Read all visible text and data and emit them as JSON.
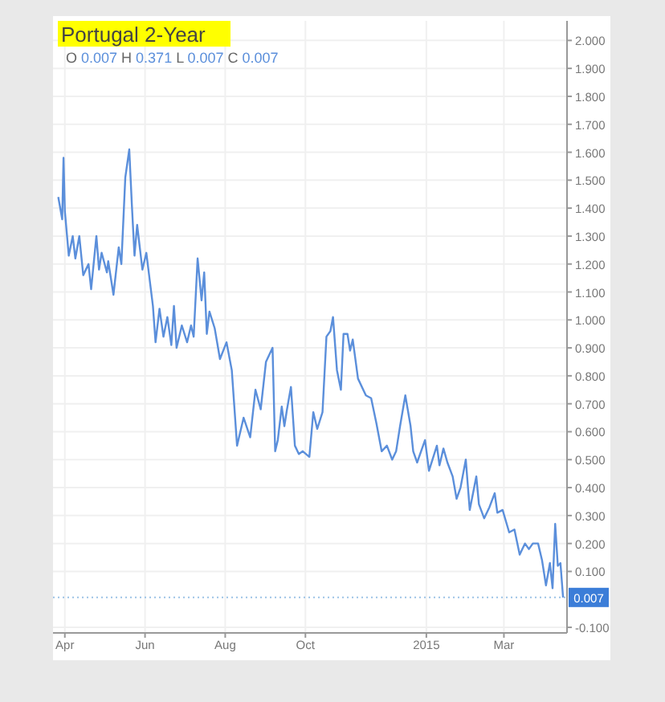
{
  "chart_data": {
    "type": "line",
    "title": "Portugal 2-Year",
    "subtitle": "O 0.007 H 0.371 L 0.007 C 0.007",
    "series": [
      {
        "color": "#5b8fdb",
        "x": [
          "2014-03-27",
          "2014-03-30",
          "2014-03-31",
          "2014-04-01",
          "2014-04-04",
          "2014-04-07",
          "2014-04-09",
          "2014-04-12",
          "2014-04-15",
          "2014-04-19",
          "2014-04-21",
          "2014-04-25",
          "2014-04-27",
          "2014-04-29",
          "2014-05-03",
          "2014-05-04",
          "2014-05-08",
          "2014-05-12",
          "2014-05-14",
          "2014-05-17",
          "2014-05-20",
          "2014-05-22",
          "2014-05-24",
          "2014-05-26",
          "2014-05-30",
          "2014-06-02",
          "2014-06-07",
          "2014-06-09",
          "2014-06-12",
          "2014-06-15",
          "2014-06-18",
          "2014-06-21",
          "2014-06-23",
          "2014-06-25",
          "2014-06-29",
          "2014-07-03",
          "2014-07-06",
          "2014-07-08",
          "2014-07-11",
          "2014-07-14",
          "2014-07-16",
          "2014-07-18",
          "2014-07-20",
          "2014-07-24",
          "2014-07-28",
          "2014-08-02",
          "2014-08-06",
          "2014-08-10",
          "2014-08-15",
          "2014-08-20",
          "2014-08-24",
          "2014-08-28",
          "2014-09-01",
          "2014-09-06",
          "2014-09-08",
          "2014-09-10",
          "2014-09-13",
          "2014-09-15",
          "2014-09-17",
          "2014-09-20",
          "2014-09-23",
          "2014-09-26",
          "2014-09-29",
          "2014-10-04",
          "2014-10-07",
          "2014-10-10",
          "2014-10-14",
          "2014-10-17",
          "2014-10-20",
          "2014-10-22",
          "2014-10-25",
          "2014-10-28",
          "2014-10-30",
          "2014-11-02",
          "2014-11-04",
          "2014-11-06",
          "2014-11-10",
          "2014-11-16",
          "2014-11-20",
          "2014-11-24",
          "2014-11-28",
          "2014-12-02",
          "2014-12-06",
          "2014-12-09",
          "2014-12-12",
          "2014-12-16",
          "2014-12-20",
          "2014-12-22",
          "2014-12-25",
          "2014-12-31",
          "2015-01-03",
          "2015-01-09",
          "2015-01-11",
          "2015-01-14",
          "2015-01-17",
          "2015-01-21",
          "2015-01-24",
          "2015-01-27",
          "2015-01-31",
          "2015-02-03",
          "2015-02-08",
          "2015-02-10",
          "2015-02-14",
          "2015-02-18",
          "2015-02-22",
          "2015-02-24",
          "2015-02-28",
          "2015-03-05",
          "2015-03-09",
          "2015-03-13",
          "2015-03-17",
          "2015-03-20",
          "2015-03-23",
          "2015-03-27",
          "2015-03-30",
          "2015-04-02",
          "2015-04-05",
          "2015-04-07",
          "2015-04-09",
          "2015-04-11",
          "2015-04-13",
          "2015-04-15"
        ],
        "values": [
          1.44,
          1.36,
          1.58,
          1.39,
          1.23,
          1.3,
          1.22,
          1.3,
          1.16,
          1.2,
          1.11,
          1.3,
          1.18,
          1.24,
          1.17,
          1.21,
          1.09,
          1.26,
          1.2,
          1.51,
          1.61,
          1.41,
          1.23,
          1.34,
          1.18,
          1.24,
          1.05,
          0.92,
          1.04,
          0.94,
          1.01,
          0.91,
          1.05,
          0.9,
          0.98,
          0.92,
          0.98,
          0.94,
          1.22,
          1.07,
          1.17,
          0.95,
          1.03,
          0.97,
          0.86,
          0.92,
          0.82,
          0.55,
          0.65,
          0.58,
          0.75,
          0.68,
          0.85,
          0.9,
          0.53,
          0.57,
          0.69,
          0.62,
          0.68,
          0.76,
          0.55,
          0.52,
          0.53,
          0.51,
          0.67,
          0.61,
          0.67,
          0.94,
          0.96,
          1.01,
          0.82,
          0.75,
          0.95,
          0.95,
          0.89,
          0.93,
          0.79,
          0.73,
          0.72,
          0.63,
          0.53,
          0.55,
          0.5,
          0.53,
          0.62,
          0.73,
          0.62,
          0.53,
          0.49,
          0.57,
          0.46,
          0.55,
          0.48,
          0.54,
          0.49,
          0.44,
          0.36,
          0.4,
          0.5,
          0.32,
          0.44,
          0.34,
          0.29,
          0.33,
          0.38,
          0.31,
          0.32,
          0.24,
          0.25,
          0.16,
          0.2,
          0.18,
          0.2,
          0.2,
          0.14,
          0.05,
          0.13,
          0.04,
          0.27,
          0.12,
          0.13,
          0.007
        ]
      }
    ],
    "xlim": [
      "2014-03-23",
      "2015-04-18"
    ],
    "xticks": [
      {
        "value": "2014-04-01",
        "label": "Apr"
      },
      {
        "value": "2014-06-01",
        "label": "Jun"
      },
      {
        "value": "2014-08-01",
        "label": "Aug"
      },
      {
        "value": "2014-10-01",
        "label": "Oct"
      },
      {
        "value": "2015-01-01",
        "label": "2015"
      },
      {
        "value": "2015-03-01",
        "label": "Mar"
      }
    ],
    "ylim": [
      -0.12,
      2.07
    ],
    "yticks": [
      {
        "value": -0.1,
        "label": "-0.100"
      },
      {
        "value": 0.1,
        "label": "0.100"
      },
      {
        "value": 0.2,
        "label": "0.200"
      },
      {
        "value": 0.3,
        "label": "0.300"
      },
      {
        "value": 0.4,
        "label": "0.400"
      },
      {
        "value": 0.5,
        "label": "0.500"
      },
      {
        "value": 0.6,
        "label": "0.600"
      },
      {
        "value": 0.7,
        "label": "0.700"
      },
      {
        "value": 0.8,
        "label": "0.800"
      },
      {
        "value": 0.9,
        "label": "0.900"
      },
      {
        "value": 1.0,
        "label": "1.000"
      },
      {
        "value": 1.1,
        "label": "1.100"
      },
      {
        "value": 1.2,
        "label": "1.200"
      },
      {
        "value": 1.3,
        "label": "1.300"
      },
      {
        "value": 1.4,
        "label": "1.400"
      },
      {
        "value": 1.5,
        "label": "1.500"
      },
      {
        "value": 1.6,
        "label": "1.600"
      },
      {
        "value": 1.7,
        "label": "1.700"
      },
      {
        "value": 1.8,
        "label": "1.800"
      },
      {
        "value": 1.9,
        "label": "1.900"
      },
      {
        "value": 2.0,
        "label": "2.000"
      }
    ],
    "ref_lines": [
      {
        "axis": "y",
        "value": 0.007,
        "label": "0.007",
        "color": "#9cc3e6",
        "line_style": "dotted"
      }
    ],
    "grid": true,
    "marker": "none",
    "line_style": "solid"
  }
}
